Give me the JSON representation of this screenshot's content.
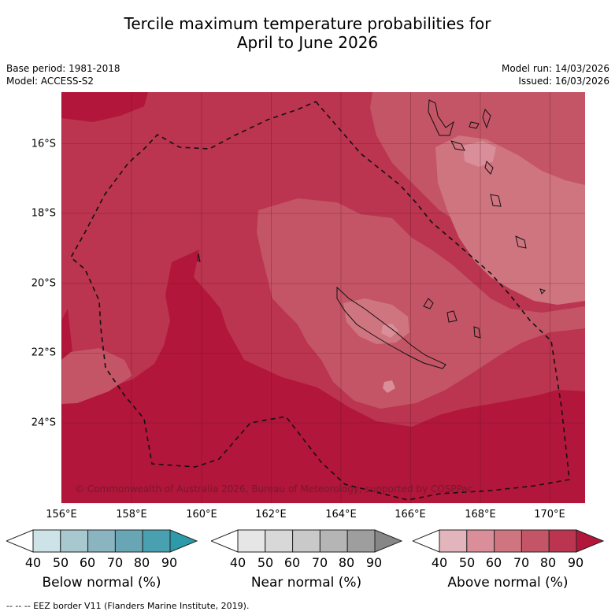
{
  "title_line1": "Tercile maximum temperature probabilities for",
  "title_line2": "April to June 2026",
  "meta_left": {
    "base_period": "Base period: 1981-2018",
    "model": "Model: ACCESS-S2"
  },
  "meta_right": {
    "model_run": "Model run: 14/03/2026",
    "issued": "Issued: 16/03/2026"
  },
  "lat_labels": [
    "16°S",
    "18°S",
    "20°S",
    "22°S",
    "24°S"
  ],
  "lon_labels": [
    "156°E",
    "158°E",
    "160°E",
    "162°E",
    "164°E",
    "166°E",
    "168°E",
    "170°E"
  ],
  "copyright": "© Commonwealth of Australia 2026, Bureau of Meteorology, supported by COSPPac",
  "legend": {
    "ticks": [
      "40",
      "50",
      "60",
      "70",
      "80",
      "90"
    ],
    "below": {
      "label": "Below normal (%)",
      "colors": [
        "#cde3e8",
        "#a7c8cf",
        "#8ab5c0",
        "#69a6b5",
        "#48a0b0",
        "#2d9aaa"
      ]
    },
    "near": {
      "label": "Near normal (%)",
      "colors": [
        "#e6e6e6",
        "#d8d8d8",
        "#c9c9c9",
        "#b5b5b5",
        "#9e9e9e",
        "#878787"
      ]
    },
    "above": {
      "label": "Above normal (%)",
      "colors": [
        "#e2b5bd",
        "#d98e99",
        "#cf7580",
        "#c45566",
        "#bb3450",
        "#b2163a"
      ]
    }
  },
  "footer": "-- -- -- EEZ border V11 (Flanders Marine Institute, 2019)."
}
